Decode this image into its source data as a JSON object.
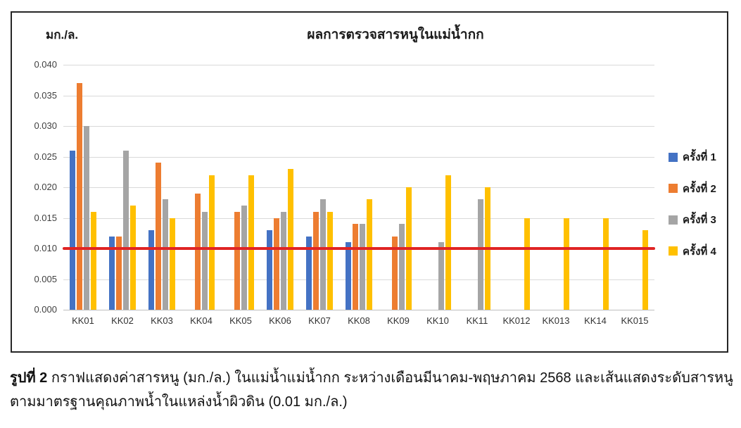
{
  "unit_label": "มก./ล.",
  "chart_data": {
    "type": "bar",
    "title": "ผลการตรวจสารหนูในแม่น้ำกก",
    "ylabel": "มก./ล.",
    "xlabel": "",
    "ylim": [
      0,
      0.04
    ],
    "y_tick_step": 0.005,
    "y_ticks": [
      "0.000",
      "0.005",
      "0.010",
      "0.015",
      "0.020",
      "0.025",
      "0.030",
      "0.035",
      "0.040"
    ],
    "grid": true,
    "legend_position": "right",
    "categories": [
      "KK01",
      "KK02",
      "KK03",
      "KK04",
      "KK05",
      "KK06",
      "KK07",
      "KK08",
      "KK09",
      "KK10",
      "KK11",
      "KK012",
      "KK013",
      "KK14",
      "KK015"
    ],
    "series": [
      {
        "name": "ครั้งที่ 1",
        "color": "#4472C4",
        "values": [
          0.026,
          0.012,
          0.013,
          null,
          null,
          0.013,
          0.012,
          0.011,
          null,
          null,
          null,
          null,
          null,
          null,
          null
        ]
      },
      {
        "name": "ครั้งที่ 2",
        "color": "#ED7D31",
        "values": [
          0.037,
          0.012,
          0.024,
          0.019,
          0.016,
          0.015,
          0.016,
          0.014,
          0.012,
          null,
          null,
          null,
          null,
          null,
          null
        ]
      },
      {
        "name": "ครั้งที่ 3",
        "color": "#A5A5A5",
        "values": [
          0.03,
          0.026,
          0.018,
          0.016,
          0.017,
          0.016,
          0.018,
          0.014,
          0.014,
          0.011,
          0.018,
          null,
          null,
          null,
          null
        ]
      },
      {
        "name": "ครั้งที่ 4",
        "color": "#FFC000",
        "values": [
          0.016,
          0.017,
          0.015,
          0.022,
          0.022,
          0.023,
          0.016,
          0.018,
          0.02,
          0.022,
          0.02,
          0.015,
          0.015,
          0.015,
          0.013
        ]
      }
    ],
    "reference_line": {
      "value": 0.01,
      "color": "#E02424"
    }
  },
  "caption": {
    "prefix": "รูปที่ 2",
    "text": " กราฟแสดงค่าสารหนู (มก./ล.) ในแม่น้ำแม่น้ำกก ระหว่างเดือนมีนาคม-พฤษภาคม 2568 และเส้นแสดงระดับสารหนูตามมาตรฐานคุณภาพน้ำในแหล่งน้ำผิวดิน (0.01 มก./ล.)"
  }
}
